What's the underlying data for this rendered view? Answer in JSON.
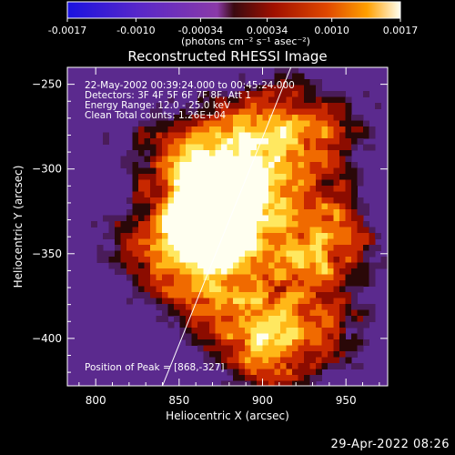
{
  "chart_data": {
    "type": "heatmap",
    "title": "Reconstructed RHESSI Image",
    "xlabel": "Heliocentric X (arcsec)",
    "ylabel": "Heliocentric Y (arcsec)",
    "xlim": [
      783,
      975
    ],
    "ylim": [
      -428,
      -240
    ],
    "x_ticks": [
      800,
      850,
      900,
      950
    ],
    "y_ticks": [
      -250,
      -300,
      -350,
      -400
    ],
    "colorbar": {
      "ticks": [
        "-0.0017",
        "-0.0010",
        "-0.00034",
        "0.00034",
        "0.0010",
        "0.0017"
      ],
      "range": [
        -0.0017,
        0.0017
      ],
      "unit": "(photons cm⁻² s⁻¹ asec⁻²)"
    },
    "annotations": [
      "22-May-2002 00:39:24.000 to 00:45:24.000",
      "Detectors: 3F 4F 5F 6F 7F 8F, Att 1",
      "Energy Range: 12.0 - 25.0 keV",
      "Clean    Total counts: 1.26E+04"
    ],
    "peak_label": "Position of Peak = [868,-327]",
    "peak": [
      868,
      -327
    ],
    "limb_line": [
      [
        840,
        -428
      ],
      [
        917,
        -240
      ]
    ]
  },
  "date_stamp": "29-Apr-2022 08:26"
}
